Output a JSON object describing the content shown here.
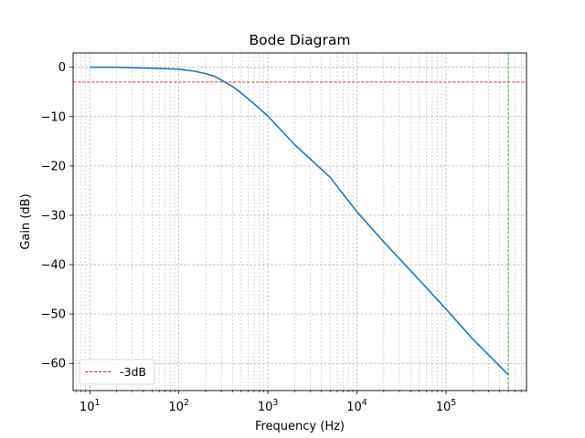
{
  "chart_data": {
    "type": "line",
    "title": "Bode Diagram",
    "xlabel": "Frequency (Hz)",
    "ylabel": "Gain (dB)",
    "xscale": "log",
    "xlim": [
      6.5,
      800000
    ],
    "ylim": [
      -65.5,
      2.9
    ],
    "x_tick_labels": [
      {
        "value": 10,
        "base": "10",
        "exp": "1"
      },
      {
        "value": 100,
        "base": "10",
        "exp": "2"
      },
      {
        "value": 1000,
        "base": "10",
        "exp": "3"
      },
      {
        "value": 10000,
        "base": "10",
        "exp": "4"
      },
      {
        "value": 100000,
        "base": "10",
        "exp": "5"
      }
    ],
    "y_ticks": [
      0,
      -10,
      -20,
      -30,
      -40,
      -50,
      -60
    ],
    "y_tick_labels": [
      "0",
      "−10",
      "−20",
      "−30",
      "−40",
      "−50",
      "−60"
    ],
    "grid": "both (major and minor)",
    "legend_position": "lower-left",
    "series": [
      {
        "color": "#1f77b4",
        "style": "solid",
        "x": [
          10,
          20,
          50,
          100,
          150,
          200,
          250,
          300,
          400,
          500,
          700,
          1000,
          2000,
          5000,
          10000,
          20000,
          50000,
          100000,
          200000,
          500000
        ],
        "y": [
          0.0,
          0.0,
          -0.2,
          -0.4,
          -0.8,
          -1.3,
          -1.8,
          -2.6,
          -3.9,
          -5.2,
          -7.4,
          -9.9,
          -15.7,
          -22.3,
          -29.3,
          -35.4,
          -43.1,
          -49.0,
          -55.1,
          -62.3
        ]
      }
    ],
    "reference_lines": [
      {
        "orientation": "horizontal",
        "value": -3,
        "color": "#d62728",
        "style": "dashed",
        "label": "-3dB"
      },
      {
        "orientation": "vertical",
        "value": 500000,
        "color": "#2ca02c",
        "style": "dashed"
      }
    ],
    "legend": [
      {
        "label": "-3dB",
        "color": "#d62728",
        "style": "dashed"
      }
    ]
  }
}
